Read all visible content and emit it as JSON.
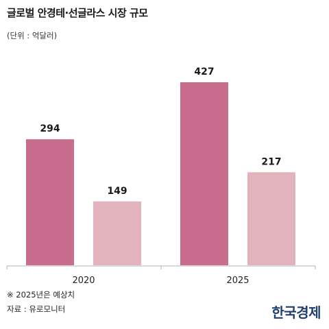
{
  "header": {
    "title": "글로벌 안경테·선글라스 시장 규모",
    "unit": "(단위 : 억달러)"
  },
  "footer": {
    "note": "※ 2025년은 예상치",
    "source": "자료 : 유로모니터",
    "brand": "한국경제"
  },
  "colors": {
    "series1": "#c96d8e",
    "series2": "#e2b2bd",
    "axis": "#b0b0b0"
  },
  "chart_data": {
    "type": "bar",
    "categories": [
      "2020",
      "2025"
    ],
    "series": [
      {
        "values": [
          294,
          427
        ]
      },
      {
        "values": [
          149,
          217
        ]
      }
    ],
    "ylim": [
      0,
      427
    ],
    "data_labels": true,
    "grid": false,
    "xlabel": "",
    "ylabel": ""
  }
}
